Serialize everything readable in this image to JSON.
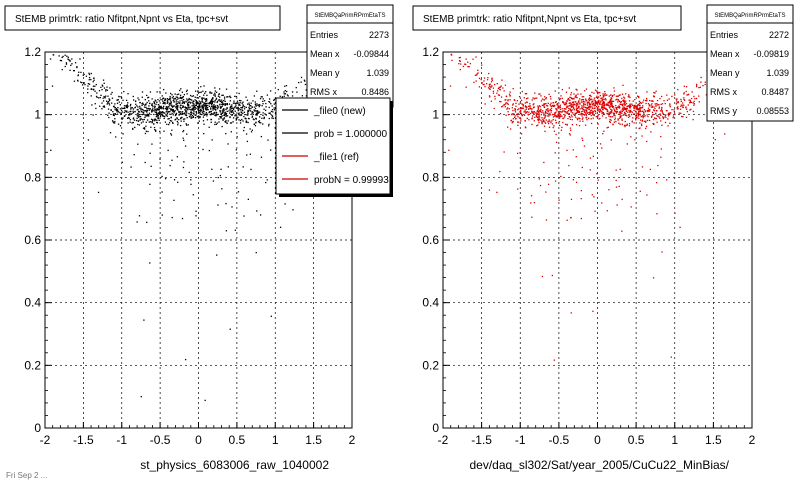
{
  "panels": [
    {
      "title": "StEMB primtrk: ratio Nfitpnt,Npnt vs Eta, tpc+svt",
      "xlabel": "st_physics_6083006_raw_1040002",
      "stats": {
        "name": "StEMBQaPrimRPrmEtaTS",
        "rows": [
          {
            "label": "Entries",
            "value": "2273"
          },
          {
            "label": "Mean x",
            "value": "-0.09844"
          },
          {
            "label": "Mean y",
            "value": "1.039"
          },
          {
            "label": "RMS x",
            "value": "0.8486"
          }
        ]
      },
      "legend": [
        {
          "label": "_file0 (new)",
          "color": "#000000"
        },
        {
          "label": "prob = 1.000000",
          "color": "#000000"
        },
        {
          "label": "_file1 (ref)",
          "color": "#cc0000"
        },
        {
          "label": "probN = 0.99993",
          "color": "#cc0000"
        }
      ],
      "marker_color": "#000000"
    },
    {
      "title": "StEMB primtrk: ratio Nfitpnt,Npnt vs Eta, tpc+svt",
      "xlabel": "dev/daq_sl302/Sat/year_2005/CuCu22_MinBias/",
      "stats": {
        "name": "StEMBQaPrimRPrmEtaTS",
        "rows": [
          {
            "label": "Entries",
            "value": "2272"
          },
          {
            "label": "Mean x",
            "value": "-0.09819"
          },
          {
            "label": "Mean y",
            "value": "1.039"
          },
          {
            "label": "RMS x",
            "value": "0.8487"
          },
          {
            "label": "RMS y",
            "value": "0.08553"
          }
        ]
      },
      "legend": [],
      "marker_color": "#dd0000"
    }
  ],
  "footer_text": "Fri Sep 2 ...",
  "chart_data": [
    {
      "type": "scatter",
      "title": "StEMB primtrk: ratio Nfitpnt,Npnt vs Eta, tpc+svt",
      "xlabel": "st_physics_6083006_raw_1040002",
      "ylabel": "",
      "xlim": [
        -2,
        2
      ],
      "ylim": [
        0,
        1.2
      ],
      "xticks": [
        -2,
        -1.5,
        -1,
        -0.5,
        0,
        0.5,
        1,
        1.5,
        2
      ],
      "yticks": [
        0,
        0.2,
        0.4,
        0.6,
        0.8,
        1,
        1.2
      ],
      "grid": true,
      "series": [
        {
          "name": "_file0 (new)",
          "entries": 2273,
          "mean_x": -0.09844,
          "mean_y": 1.039,
          "rms_x": 0.8486,
          "trend": {
            "x": [
              -1.9,
              -1.7,
              -1.5,
              -1.3,
              -1.1,
              -0.9,
              -0.6,
              -0.3,
              0.0,
              0.3,
              0.6,
              0.9,
              1.1,
              1.3,
              1.5,
              1.7,
              1.9
            ],
            "y": [
              1.2,
              1.16,
              1.12,
              1.06,
              1.02,
              1.01,
              1.01,
              1.02,
              1.03,
              1.02,
              1.01,
              1.01,
              1.03,
              1.06,
              1.11,
              1.16,
              1.2
            ]
          }
        }
      ]
    },
    {
      "type": "scatter",
      "title": "StEMB primtrk: ratio Nfitpnt,Npnt vs Eta, tpc+svt",
      "xlabel": "dev/daq_sl302/Sat/year_2005/CuCu22_MinBias/",
      "ylabel": "",
      "xlim": [
        -2,
        2
      ],
      "ylim": [
        0,
        1.2
      ],
      "xticks": [
        -2,
        -1.5,
        -1,
        -0.5,
        0,
        0.5,
        1,
        1.5,
        2
      ],
      "yticks": [
        0,
        0.2,
        0.4,
        0.6,
        0.8,
        1,
        1.2
      ],
      "grid": true,
      "series": [
        {
          "name": "_file1 (ref)",
          "entries": 2272,
          "mean_x": -0.09819,
          "mean_y": 1.039,
          "rms_x": 0.8487,
          "rms_y": 0.08553,
          "trend": {
            "x": [
              -1.9,
              -1.7,
              -1.5,
              -1.3,
              -1.1,
              -0.9,
              -0.6,
              -0.3,
              0.0,
              0.3,
              0.6,
              0.9,
              1.1,
              1.3,
              1.5,
              1.7,
              1.9
            ],
            "y": [
              1.2,
              1.16,
              1.12,
              1.06,
              1.02,
              1.01,
              1.01,
              1.02,
              1.03,
              1.02,
              1.01,
              1.01,
              1.03,
              1.06,
              1.11,
              1.16,
              1.2
            ]
          }
        }
      ]
    }
  ]
}
